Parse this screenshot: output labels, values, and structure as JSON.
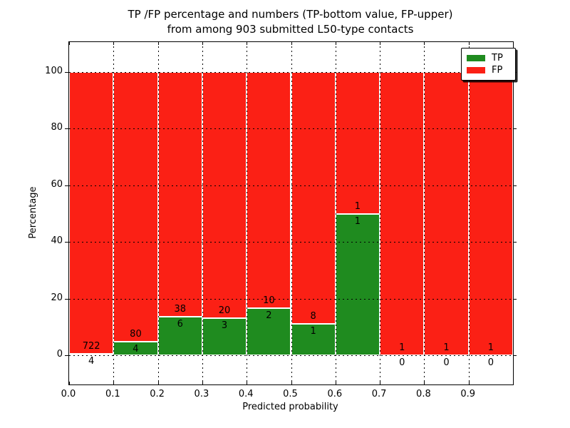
{
  "figure": {
    "background": "#ffffff",
    "axes_border_color": "#000000"
  },
  "chart_data": {
    "type": "bar",
    "stacked": true,
    "title_line1": "TP /FP percentage and numbers (TP-bottom value, FP-upper)",
    "title_line2": "from among 903 submitted L50-type contacts",
    "xlabel": "Predicted probability",
    "ylabel": "Percentage",
    "total_contacts": 903,
    "categories": [
      "0.0-0.1",
      "0.1-0.2",
      "0.2-0.3",
      "0.3-0.4",
      "0.4-0.5",
      "0.5-0.6",
      "0.6-0.7",
      "0.7-0.8",
      "0.8-0.9",
      "0.9-1.0"
    ],
    "series": [
      {
        "name": "TP",
        "color": "#1f8b1f",
        "values": [
          4,
          4,
          6,
          3,
          2,
          1,
          1,
          0,
          0,
          0
        ]
      },
      {
        "name": "FP",
        "color": "#fb2015",
        "values": [
          722,
          80,
          38,
          20,
          10,
          8,
          1,
          1,
          1,
          1
        ]
      }
    ],
    "tp_percent": [
      0.55,
      4.76,
      13.64,
      13.04,
      16.67,
      11.11,
      50.0,
      0.0,
      0.0,
      0.0
    ],
    "bar_edge_color": "#ffffff",
    "x_tick_labels": [
      "0.0",
      "0.1",
      "0.2",
      "0.3",
      "0.4",
      "0.5",
      "0.6",
      "0.7",
      "0.8",
      "0.9"
    ],
    "y_tick_values": [
      0,
      20,
      40,
      60,
      80,
      100
    ],
    "y_tick_labels": [
      "0",
      "20",
      "40",
      "60",
      "80",
      "100"
    ],
    "xlim": [
      0.0,
      1.0
    ],
    "ylim": [
      -10,
      110
    ],
    "grid": "dotted",
    "grid_color": "#000000",
    "legend_position": "upper right",
    "legend": [
      {
        "label": "TP",
        "color": "#1f8b1f"
      },
      {
        "label": "FP",
        "color": "#fb2015"
      }
    ]
  }
}
